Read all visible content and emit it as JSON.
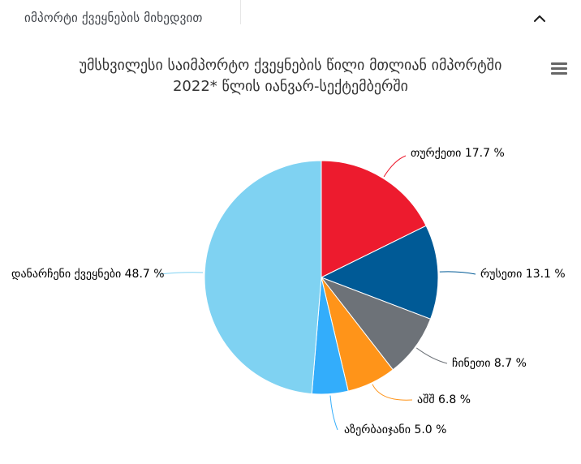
{
  "header": {
    "title": "იმპორტი ქვეყნების მიხედვით",
    "collapse_icon": "chevron-up-icon"
  },
  "chart": {
    "title_line1": "უმსხვილესი საიმპორტო ქვეყნების წილი მთლიან იმპორტში",
    "title_line2": "2022* წლის იანვარ-სექტემბერში",
    "menu_icon": "hamburger-menu-icon"
  },
  "chart_data": {
    "type": "pie",
    "title": "უმსხვილესი საიმპორტო ქვეყნების წილი მთლიან იმპორტში 2022* წლის იანვარ-სექტემბერში",
    "unit": "%",
    "start_angle_deg": -90,
    "direction": "clockwise",
    "legend": "none",
    "slices": [
      {
        "name": "თურქეთი",
        "value": 17.7,
        "color": "#ed1b2e",
        "label": "თურქეთი 17.7 %"
      },
      {
        "name": "რუსეთი",
        "value": 13.1,
        "color": "#005a96",
        "label": "რუსეთი 13.1 %"
      },
      {
        "name": "ჩინეთი",
        "value": 8.7,
        "color": "#6d7278",
        "label": "ჩინეთი 8.7 %"
      },
      {
        "name": "აშშ",
        "value": 6.8,
        "color": "#ff9419",
        "label": "აშშ 6.8 %"
      },
      {
        "name": "აზერბაიჯანი",
        "value": 5.0,
        "color": "#33adfb",
        "label": "აზერბაიჯანი 5.0 %"
      },
      {
        "name": "დანარჩენი ქვეყნები",
        "value": 48.7,
        "color": "#7fd2f2",
        "label": "დანარჩენი ქვეყნები 48.7 %"
      }
    ]
  }
}
